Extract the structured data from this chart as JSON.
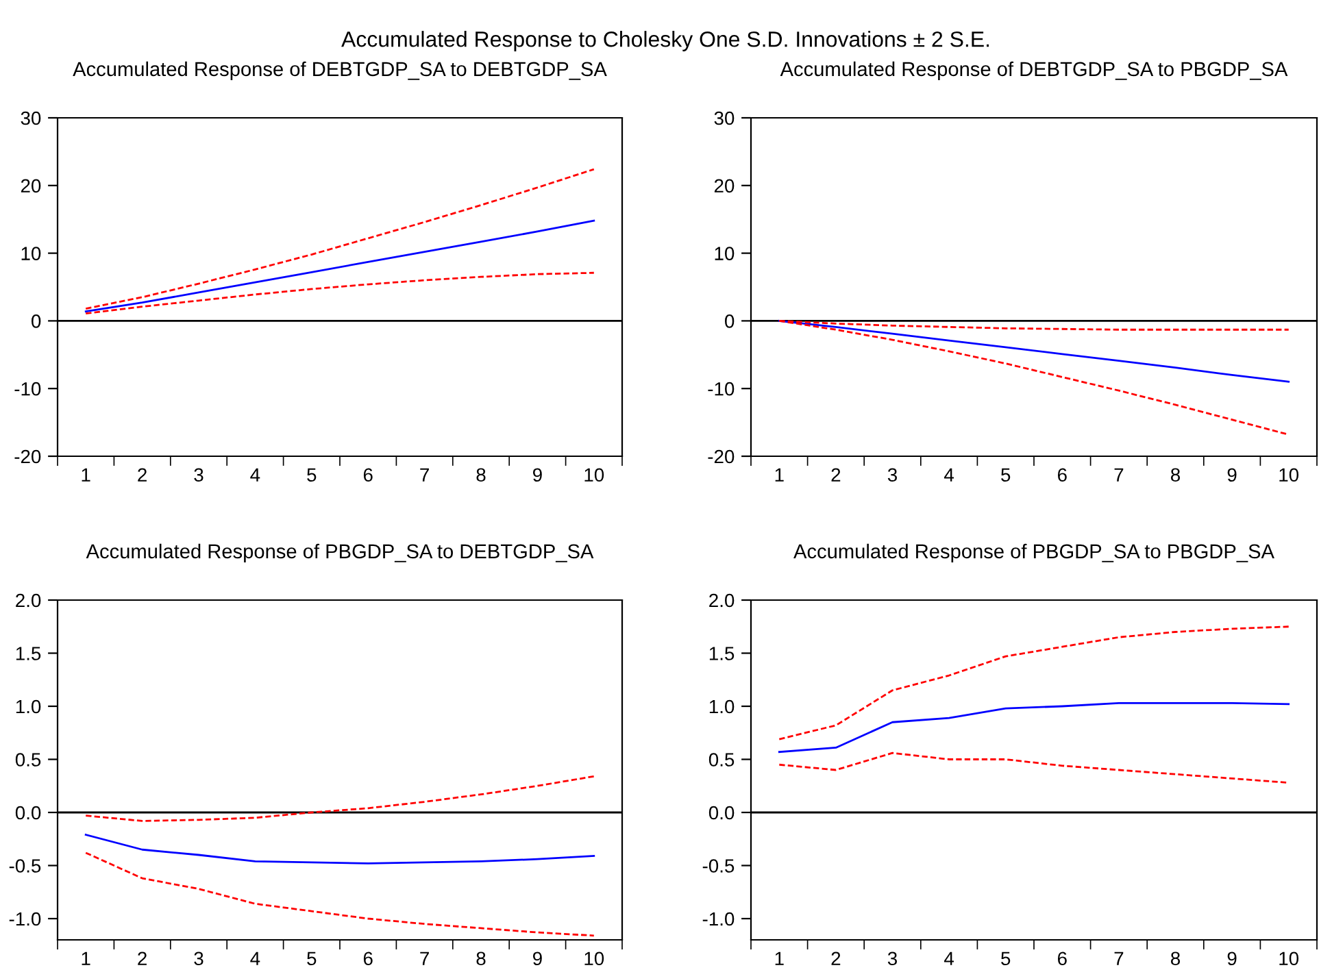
{
  "chart_data": [
    {
      "type": "line",
      "subtitle": "Accumulated Response to Cholesky One S.D. Innovations ± 2 S.E.",
      "title": "Accumulated Response of DEBTGDP_SA to DEBTGDP_SA",
      "categories": [
        "1",
        "2",
        "3",
        "4",
        "5",
        "6",
        "7",
        "8",
        "9",
        "10"
      ],
      "ylim": [
        -20,
        30
      ],
      "yticks": [
        -20,
        -10,
        0,
        10,
        20,
        30
      ],
      "grid": false,
      "marker": "none",
      "ref_lines": [
        {
          "axis": "y",
          "value": 0,
          "color": "#000000",
          "line_style": "solid"
        }
      ],
      "series": [
        {
          "color": "#0000ff",
          "line_style": "solid",
          "values": [
            1.4,
            2.7,
            4.2,
            5.7,
            7.2,
            8.7,
            10.2,
            11.7,
            13.2,
            14.8
          ]
        },
        {
          "color": "#ff0000",
          "line_style": "dashed",
          "values": [
            1.8,
            3.5,
            5.5,
            7.6,
            9.8,
            12.2,
            14.6,
            17.1,
            19.7,
            22.4
          ]
        },
        {
          "color": "#ff0000",
          "line_style": "dashed",
          "values": [
            1.1,
            2.1,
            3.0,
            3.9,
            4.7,
            5.4,
            6.0,
            6.5,
            6.9,
            7.1
          ]
        }
      ]
    },
    {
      "type": "line",
      "title": "Accumulated Response of DEBTGDP_SA to PBGDP_SA",
      "categories": [
        "1",
        "2",
        "3",
        "4",
        "5",
        "6",
        "7",
        "8",
        "9",
        "10"
      ],
      "ylim": [
        -20,
        30
      ],
      "yticks": [
        -20,
        -10,
        0,
        10,
        20,
        30
      ],
      "grid": false,
      "marker": "none",
      "ref_lines": [
        {
          "axis": "y",
          "value": 0,
          "color": "#000000",
          "line_style": "solid"
        }
      ],
      "series": [
        {
          "color": "#0000ff",
          "line_style": "solid",
          "values": [
            0,
            -0.9,
            -1.9,
            -2.9,
            -3.9,
            -4.9,
            -5.9,
            -6.9,
            -8.0,
            -9.0
          ]
        },
        {
          "color": "#ff0000",
          "line_style": "dashed",
          "values": [
            0,
            -0.4,
            -0.7,
            -0.9,
            -1.1,
            -1.2,
            -1.3,
            -1.3,
            -1.3,
            -1.3
          ]
        },
        {
          "color": "#ff0000",
          "line_style": "dashed",
          "values": [
            0,
            -1.3,
            -2.8,
            -4.5,
            -6.3,
            -8.3,
            -10.3,
            -12.4,
            -14.6,
            -16.8
          ]
        }
      ]
    },
    {
      "type": "line",
      "title": "Accumulated Response of PBGDP_SA to DEBTGDP_SA",
      "categories": [
        "1",
        "2",
        "3",
        "4",
        "5",
        "6",
        "7",
        "8",
        "9",
        "10"
      ],
      "ylim": [
        -1.2,
        2.0
      ],
      "yticks": [
        {
          "value": -1.0,
          "label": "-1.0"
        },
        {
          "value": -0.5,
          "label": "-0.5"
        },
        {
          "value": 0.0,
          "label": "0.0"
        },
        {
          "value": 0.5,
          "label": "0.5"
        },
        {
          "value": 1.0,
          "label": "1.0"
        },
        {
          "value": 1.5,
          "label": "1.5"
        },
        {
          "value": 2.0,
          "label": "2.0"
        }
      ],
      "grid": false,
      "marker": "none",
      "ref_lines": [
        {
          "axis": "y",
          "value": 0,
          "color": "#000000",
          "line_style": "solid"
        }
      ],
      "series": [
        {
          "color": "#0000ff",
          "line_style": "solid",
          "values": [
            -0.21,
            -0.35,
            -0.4,
            -0.46,
            -0.47,
            -0.48,
            -0.47,
            -0.46,
            -0.44,
            -0.41
          ]
        },
        {
          "color": "#ff0000",
          "line_style": "dashed",
          "values": [
            -0.03,
            -0.08,
            -0.07,
            -0.05,
            0.0,
            0.04,
            0.1,
            0.17,
            0.25,
            0.34
          ]
        },
        {
          "color": "#ff0000",
          "line_style": "dashed",
          "values": [
            -0.38,
            -0.62,
            -0.72,
            -0.86,
            -0.93,
            -1.0,
            -1.05,
            -1.09,
            -1.13,
            -1.16
          ]
        }
      ]
    },
    {
      "type": "line",
      "title": "Accumulated Response of PBGDP_SA to PBGDP_SA",
      "categories": [
        "1",
        "2",
        "3",
        "4",
        "5",
        "6",
        "7",
        "8",
        "9",
        "10"
      ],
      "ylim": [
        -1.2,
        2.0
      ],
      "yticks": [
        {
          "value": -1.0,
          "label": "-1.0"
        },
        {
          "value": -0.5,
          "label": "-0.5"
        },
        {
          "value": 0.0,
          "label": "0.0"
        },
        {
          "value": 0.5,
          "label": "0.5"
        },
        {
          "value": 1.0,
          "label": "1.0"
        },
        {
          "value": 1.5,
          "label": "1.5"
        },
        {
          "value": 2.0,
          "label": "2.0"
        }
      ],
      "grid": false,
      "marker": "none",
      "ref_lines": [
        {
          "axis": "y",
          "value": 0,
          "color": "#000000",
          "line_style": "solid"
        }
      ],
      "series": [
        {
          "color": "#0000ff",
          "line_style": "solid",
          "values": [
            0.57,
            0.61,
            0.85,
            0.89,
            0.98,
            1.0,
            1.03,
            1.03,
            1.03,
            1.02
          ]
        },
        {
          "color": "#ff0000",
          "line_style": "dashed",
          "values": [
            0.69,
            0.82,
            1.15,
            1.29,
            1.47,
            1.56,
            1.65,
            1.7,
            1.73,
            1.75
          ]
        },
        {
          "color": "#ff0000",
          "line_style": "dashed",
          "values": [
            0.45,
            0.4,
            0.56,
            0.5,
            0.5,
            0.44,
            0.4,
            0.36,
            0.32,
            0.28
          ]
        }
      ]
    }
  ]
}
